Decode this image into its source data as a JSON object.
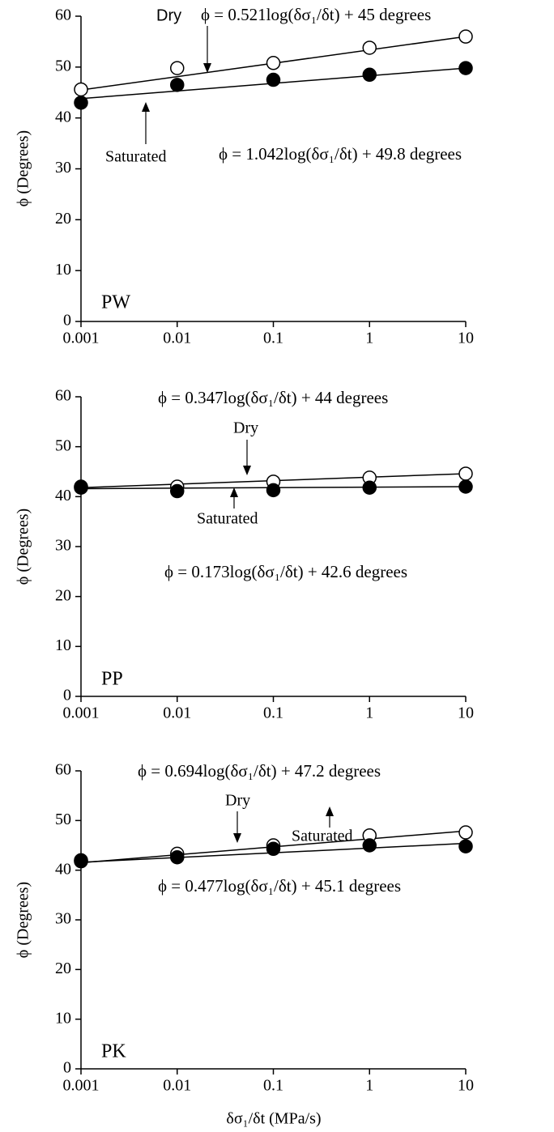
{
  "chart_data": [
    {
      "type": "scatter",
      "panel_label": "PW",
      "ylabel": "ϕ (Degrees)",
      "log_x": true,
      "x": [
        0.001,
        0.01,
        0.1,
        1,
        10
      ],
      "xlim": [
        0.001,
        10
      ],
      "xticks": [
        0.001,
        0.01,
        0.1,
        1,
        10
      ],
      "ylim": [
        0,
        60
      ],
      "yticks": [
        0,
        10,
        20,
        30,
        40,
        50,
        60
      ],
      "series": [
        {
          "name": "Dry",
          "color": "#ffffff",
          "values": [
            45.6,
            49.8,
            50.8,
            53.8,
            56.0
          ],
          "fit": [
            45.5,
            56.0
          ]
        },
        {
          "name": "Saturated",
          "color": "#000000",
          "values": [
            43.0,
            46.5,
            47.5,
            48.5,
            49.8
          ],
          "fit": [
            43.8,
            49.8
          ]
        }
      ],
      "annotations": [
        "ϕ = 0.521log(δσ₁/δt) + 45  degrees",
        "ϕ = 1.042log(δσ₁/δt) + 49.8  degrees"
      ]
    },
    {
      "type": "scatter",
      "panel_label": "PP",
      "ylabel": "ϕ (Degrees)",
      "log_x": true,
      "x": [
        0.001,
        0.01,
        0.1,
        1,
        10
      ],
      "xlim": [
        0.001,
        10
      ],
      "xticks": [
        0.001,
        0.01,
        0.1,
        1,
        10
      ],
      "ylim": [
        0,
        60
      ],
      "yticks": [
        0,
        10,
        20,
        30,
        40,
        50,
        60
      ],
      "series": [
        {
          "name": "Dry",
          "color": "#ffffff",
          "values": [
            42.0,
            42.0,
            43.0,
            43.8,
            44.6
          ],
          "fit": [
            41.8,
            44.6
          ]
        },
        {
          "name": "Saturated",
          "color": "#000000",
          "values": [
            41.8,
            41.1,
            41.3,
            41.8,
            42.0
          ],
          "fit": [
            41.6,
            42.0
          ]
        }
      ],
      "annotations": [
        "ϕ = 0.347log(δσ₁/δt) + 44  degrees",
        "ϕ = 0.173log(δσ₁/δt) + 42.6  degrees"
      ]
    },
    {
      "type": "scatter",
      "panel_label": "PK",
      "ylabel": "ϕ (Degrees)",
      "xlabel": "δσ₁/δt (MPa/s)",
      "log_x": true,
      "x": [
        0.001,
        0.01,
        0.1,
        1,
        10
      ],
      "xlim": [
        0.001,
        10
      ],
      "xticks": [
        0.001,
        0.01,
        0.1,
        1,
        10
      ],
      "ylim": [
        0,
        60
      ],
      "yticks": [
        0,
        10,
        20,
        30,
        40,
        50,
        60
      ],
      "series": [
        {
          "name": "Dry",
          "color": "#ffffff",
          "values": [
            42.0,
            43.3,
            45.0,
            47.0,
            47.6
          ],
          "fit": [
            41.5,
            47.9
          ]
        },
        {
          "name": "Saturated",
          "color": "#000000",
          "values": [
            41.8,
            42.6,
            44.3,
            45.0,
            44.8
          ],
          "fit": [
            41.6,
            45.4
          ]
        }
      ],
      "annotations": [
        "ϕ = 0.694log(δσ₁/δt) + 47.2  degrees",
        "ϕ = 0.477log(δσ₁/δt) + 45.1  degrees"
      ]
    }
  ]
}
